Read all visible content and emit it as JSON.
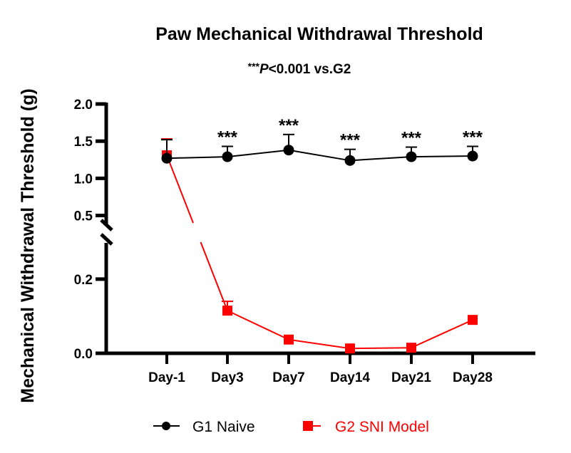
{
  "chart_data": {
    "type": "line",
    "title": "Paw Mechanical Withdrawal Threshold",
    "subtitle": {
      "stars": "***",
      "p": "P",
      "rest": "<0.001 vs.G2"
    },
    "xlabel": "",
    "ylabel": "Mechanical Withdrawal Threshold (g)",
    "categories": [
      "Day-1",
      "Day3",
      "Day7",
      "Day14",
      "Day21",
      "Day28"
    ],
    "y_axis_broken": true,
    "ylim_lower": [
      0.0,
      0.29
    ],
    "ylim_upper": [
      0.4,
      2.0
    ],
    "yticks_lower": [
      "0.0",
      "0.2"
    ],
    "yticks_upper": [
      "0.5",
      "1.0",
      "1.5",
      "2.0"
    ],
    "ytick_values_lower": [
      0.0,
      0.2
    ],
    "ytick_values_upper": [
      0.5,
      1.0,
      1.5,
      2.0
    ],
    "grid": false,
    "legend_position": "bottom",
    "series": [
      {
        "name": "G1 Naive",
        "color": "#000000",
        "marker": "circle",
        "values": [
          1.27,
          1.29,
          1.38,
          1.24,
          1.29,
          1.3
        ],
        "error_upper": [
          1.52,
          1.43,
          1.59,
          1.39,
          1.42,
          1.43
        ]
      },
      {
        "name": "G2 SNI Model",
        "color": "#ff0000",
        "marker": "square",
        "values": [
          1.31,
          0.115,
          0.037,
          0.013,
          0.015,
          0.09
        ],
        "error_upper": [
          1.53,
          0.14,
          null,
          null,
          null,
          null
        ]
      }
    ],
    "annotations": [
      {
        "category": "Day3",
        "text": "***"
      },
      {
        "category": "Day7",
        "text": "***"
      },
      {
        "category": "Day14",
        "text": "***"
      },
      {
        "category": "Day21",
        "text": "***"
      },
      {
        "category": "Day28",
        "text": "***"
      }
    ]
  }
}
